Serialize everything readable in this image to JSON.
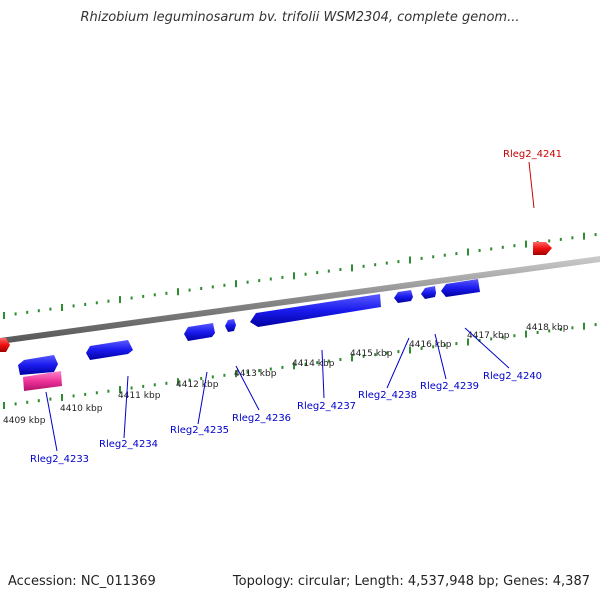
{
  "header": {
    "title": "Rhizobium leguminosarum bv. trifolii WSM2304, complete genom..."
  },
  "footer": {
    "accession": "Accession: NC_011369",
    "summary": "Topology: circular; Length: 4,537,948 bp; Genes: 4,387"
  },
  "map": {
    "kbp_labels": [
      "4409 kbp",
      "4410 kbp",
      "4411 kbp",
      "4412 kbp",
      "4413 kbp",
      "4414 kbp",
      "4415 kbp",
      "4416 kbp",
      "4417 kbp",
      "4418 kbp"
    ],
    "genes": [
      {
        "label": "Rleg2_4233",
        "color": "#0000cc"
      },
      {
        "label": "Rleg2_4234",
        "color": "#0000cc"
      },
      {
        "label": "Rleg2_4235",
        "color": "#0000cc"
      },
      {
        "label": "Rleg2_4236",
        "color": "#0000cc"
      },
      {
        "label": "Rleg2_4237",
        "color": "#0000cc"
      },
      {
        "label": "Rleg2_4238",
        "color": "#0000cc"
      },
      {
        "label": "Rleg2_4239",
        "color": "#0000cc"
      },
      {
        "label": "Rleg2_4240",
        "color": "#0000cc"
      },
      {
        "label": "Rleg2_4241",
        "color": "#cc0000"
      }
    ],
    "colors": {
      "forward_gene": "#1a1aee",
      "highlight_gene": "#ee3399",
      "red_gene": "#ee1111",
      "tick": "#2e8b2e",
      "backbone": "#888888"
    }
  }
}
